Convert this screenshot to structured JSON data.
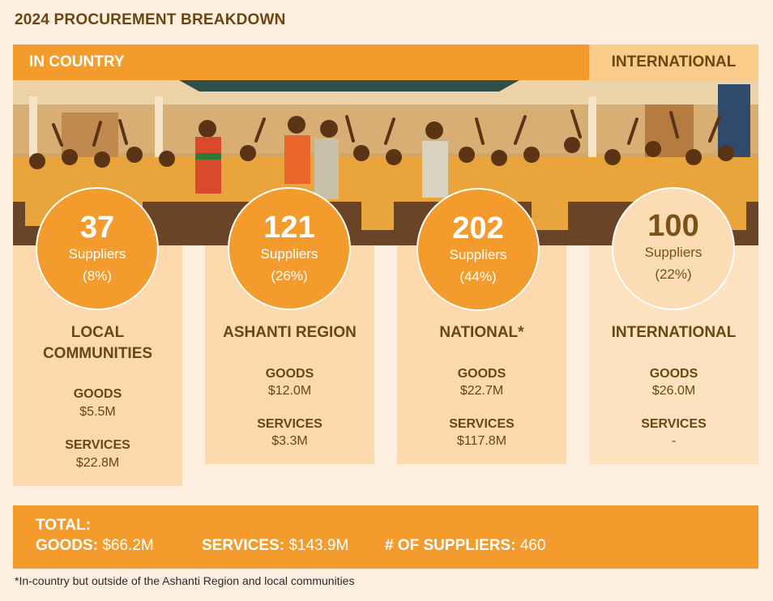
{
  "title": "2024 PROCUREMENT BREAKDOWN",
  "bands": {
    "in_country": "IN COUNTRY",
    "international": "INTERNATIONAL"
  },
  "columns": [
    {
      "count": "37",
      "suppliers_label": "Suppliers",
      "percent": "(8%)",
      "region_line1": "LOCAL",
      "region_line2": "COMMUNITIES",
      "goods_label": "GOODS",
      "goods_value": "$5.5M",
      "services_label": "SERVICES",
      "services_value": "$22.8M"
    },
    {
      "count": "121",
      "suppliers_label": "Suppliers",
      "percent": "(26%)",
      "region_line1": "ASHANTI REGION",
      "goods_label": "GOODS",
      "goods_value": "$12.0M",
      "services_label": "SERVICES",
      "services_value": "$3.3M"
    },
    {
      "count": "202",
      "suppliers_label": "Suppliers",
      "percent": "(44%)",
      "region_line1": "NATIONAL*",
      "goods_label": "GOODS",
      "goods_value": "$22.7M",
      "services_label": "SERVICES",
      "services_value": "$117.8M"
    },
    {
      "count": "100",
      "suppliers_label": "Suppliers",
      "percent": "(22%)",
      "region_line1": "INTERNATIONAL",
      "goods_label": "GOODS",
      "goods_value": "$26.0M",
      "services_label": "SERVICES",
      "services_value": "-"
    }
  ],
  "total": {
    "label": "TOTAL:",
    "goods_label": "GOODS:",
    "goods_value": "$66.2M",
    "services_label": "SERVICES:",
    "services_value": "$143.9M",
    "suppliers_label": "# OF SUPPLIERS:",
    "suppliers_value": "460"
  },
  "footnote": "*In-country but outside of the Ashanti Region and local communities",
  "colors": {
    "orange": "#f39c2d",
    "light_orange": "#fbcb8a",
    "panel": "#fbd9ad",
    "brown": "#6b4612",
    "background": "#fdeee0"
  }
}
